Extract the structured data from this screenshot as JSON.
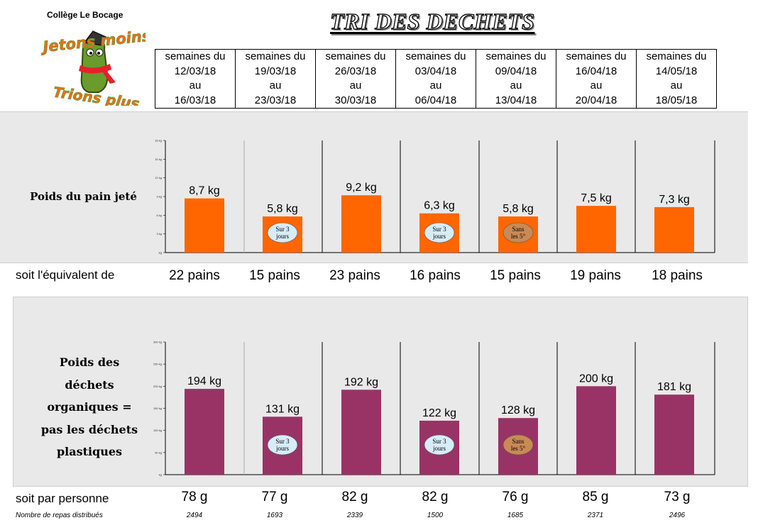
{
  "school": "Collège Le Bocage",
  "logo": {
    "line1": "Jetons moins",
    "line2": "Trions plus"
  },
  "title": "TRI DES DECHETS",
  "weeks": [
    {
      "l1": "semaines du",
      "l2": "12/03/18",
      "l3": "au",
      "l4": "16/03/18"
    },
    {
      "l1": "semaines du",
      "l2": "19/03/18",
      "l3": "au",
      "l4": "23/03/18"
    },
    {
      "l1": "semaines du",
      "l2": "26/03/18",
      "l3": "au",
      "l4": "30/03/18"
    },
    {
      "l1": "semaines du",
      "l2": "03/04/18",
      "l3": "au",
      "l4": "06/04/18"
    },
    {
      "l1": "semaines du",
      "l2": "09/04/18",
      "l3": "au",
      "l4": "13/04/18"
    },
    {
      "l1": "semaines du",
      "l2": "16/04/18",
      "l3": "au",
      "l4": "20/04/18"
    },
    {
      "l1": "semaines du",
      "l2": "14/05/18",
      "l3": "au",
      "l4": "18/05/18"
    }
  ],
  "labels": {
    "bread": "Poids du pain jeté",
    "organic": [
      "Poids des",
      "déchets",
      "organiques =",
      "pas les déchets",
      "plastiques"
    ],
    "equiv": "soit l'équivalent de",
    "per_person": "soit par personne",
    "meals": "Nombre de repas distribués"
  },
  "rows": {
    "equiv": [
      "22 pains",
      "15 pains",
      "23 pains",
      "16 pains",
      "15 pains",
      "19 pains",
      "18 pains"
    ],
    "per_person": [
      "78 g",
      "77 g",
      "82 g",
      "82 g",
      "76 g",
      "85 g",
      "73 g"
    ],
    "meals": [
      "2494",
      "1693",
      "2339",
      "1500",
      "1685",
      "2371",
      "2496"
    ]
  },
  "chart_data": [
    {
      "type": "bar",
      "categories": [
        "12/03/18 - 16/03/18",
        "19/03/18 - 23/03/18",
        "26/03/18 - 30/03/18",
        "03/04/18 - 06/04/18",
        "09/04/18 - 13/04/18",
        "16/04/18 - 20/04/18",
        "14/05/18 - 18/05/18"
      ],
      "values": [
        8.7,
        5.8,
        9.2,
        6.3,
        5.8,
        7.5,
        7.3
      ],
      "value_labels": [
        "8,7 kg",
        "5,8 kg",
        "9,2 kg",
        "6,3 kg",
        "5,8 kg",
        "7,5 kg",
        "7,3 kg"
      ],
      "ylim": [
        0,
        18
      ],
      "yticks": [
        0,
        3,
        6,
        9,
        12,
        15,
        18
      ],
      "ytick_labels": [
        ",kg",
        "3 kg",
        "6 kg",
        "9 kg",
        "12 kg",
        "15 kg",
        "18 kg"
      ],
      "color": "#ff6600",
      "notes": [
        {
          "index": 1,
          "lines": [
            "Sur 3",
            "jours"
          ],
          "color": "#d6ecf7"
        },
        {
          "index": 3,
          "lines": [
            "Sur 3",
            "jours"
          ],
          "color": "#d6ecf7"
        },
        {
          "index": 4,
          "lines": [
            "Sans",
            "les 5°"
          ],
          "color": "#c98a55"
        }
      ]
    },
    {
      "type": "bar",
      "categories": [
        "12/03/18 - 16/03/18",
        "19/03/18 - 23/03/18",
        "26/03/18 - 30/03/18",
        "03/04/18 - 06/04/18",
        "09/04/18 - 13/04/18",
        "16/04/18 - 20/04/18",
        "14/05/18 - 18/05/18"
      ],
      "values": [
        194,
        131,
        192,
        122,
        128,
        200,
        181
      ],
      "value_labels": [
        "194 kg",
        "131 kg",
        "192 kg",
        "122 kg",
        "128 kg",
        "200 kg",
        "181 kg"
      ],
      "ylim": [
        0,
        300
      ],
      "yticks": [
        0,
        50,
        100,
        150,
        200,
        250,
        300
      ],
      "ytick_labels": [
        "kg",
        "50 kg",
        "100 kg",
        "150 kg",
        "200 kg",
        "250 kg",
        "300 kg"
      ],
      "color": "#993366",
      "notes": [
        {
          "index": 1,
          "lines": [
            "Sur 3",
            "jours"
          ],
          "color": "#d6ecf7"
        },
        {
          "index": 3,
          "lines": [
            "Sur 3",
            "jours"
          ],
          "color": "#d6ecf7"
        },
        {
          "index": 4,
          "lines": [
            "Sans",
            "les 5°"
          ],
          "color": "#c98a55"
        }
      ]
    }
  ]
}
